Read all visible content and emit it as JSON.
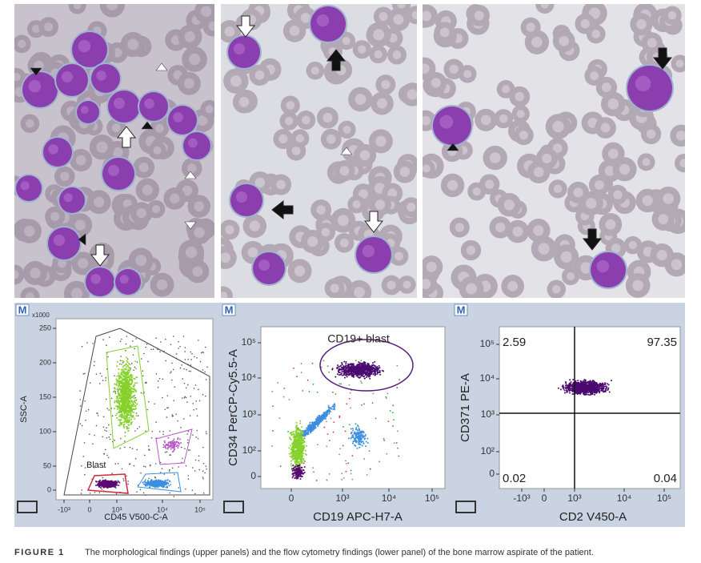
{
  "figure": {
    "flow_panels": [
      {
        "badge": "M",
        "y_unit": "x1000",
        "y_label": "SSC-A",
        "x_label": "CD45 V500-C-A",
        "y_ticks": [
          "250",
          "200",
          "150",
          "100",
          "50",
          "0"
        ],
        "x_ticks": [
          "-10³",
          "0",
          "10³",
          "10⁴",
          "10⁵"
        ],
        "gate_label": "Blast"
      },
      {
        "badge": "M",
        "y_label": "CD34 PerCP-Cy5.5-A",
        "x_label": "CD19 APC-H7-A",
        "y_ticks": [
          "10⁵",
          "10⁴",
          "10³",
          "10²",
          "0"
        ],
        "x_ticks": [
          "0",
          "10³",
          "10⁴",
          "10⁵"
        ],
        "gate_label": "CD19+ blast"
      },
      {
        "badge": "M",
        "y_label": "CD371 PE-A",
        "x_label": "CD2 V450-A",
        "y_ticks": [
          "10⁵",
          "10⁴",
          "10³",
          "10²",
          "0"
        ],
        "x_ticks": [
          "-10³",
          "0",
          "10³",
          "10⁴",
          "10⁵"
        ],
        "quadrants": [
          "2.59",
          "97.35",
          "0.02",
          "0.04"
        ]
      }
    ],
    "caption": {
      "label": "FIGURE 1",
      "text": "The morphological findings (upper panels) and the flow cytometry findings (lower panel) of the bone marrow aspirate of the patient."
    }
  }
}
